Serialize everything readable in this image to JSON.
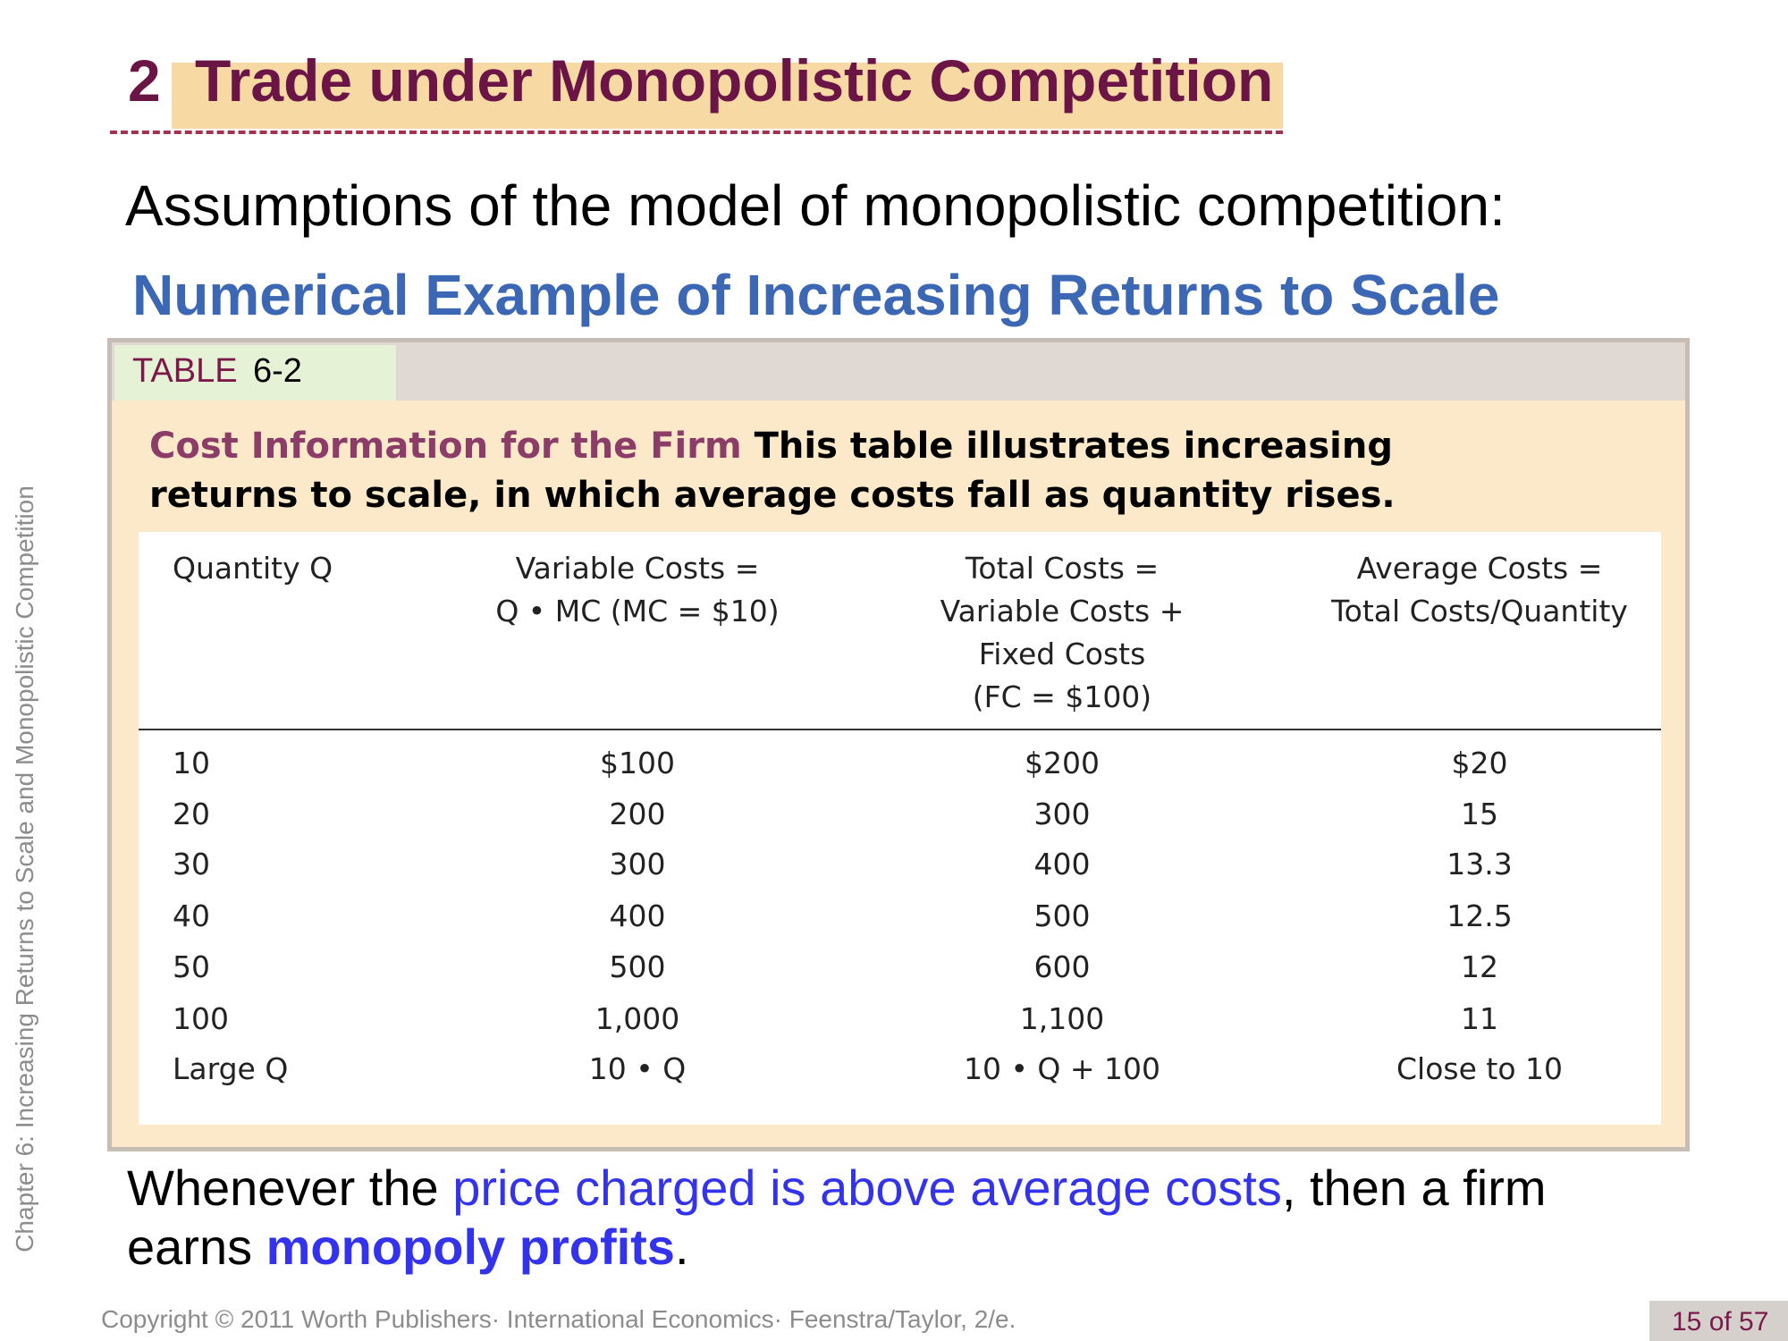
{
  "title": {
    "number": "2",
    "text": "Trade under Monopolistic Competition"
  },
  "assumptions": "Assumptions of the model of monopolistic competition:",
  "subheading": "Numerical Example of Increasing Returns to Scale",
  "table": {
    "label_word": "TABLE",
    "label_num": "6-2",
    "caption_title": "Cost Information for the Firm",
    "caption_text": " This table illustrates increasing returns to scale, in which average costs fall as quantity rises.",
    "headers": [
      "Quantity Q",
      "Variable Costs =\nQ • MC (MC = $10)",
      "Total Costs =\nVariable Costs +\nFixed Costs\n(FC = $100)",
      "Average Costs =\nTotal Costs/Quantity"
    ],
    "rows": [
      [
        "10",
        "$100",
        "$200",
        "$20"
      ],
      [
        "20",
        "200",
        "300",
        "15"
      ],
      [
        "30",
        "300",
        "400",
        "13.3"
      ],
      [
        "40",
        "400",
        "500",
        "12.5"
      ],
      [
        "50",
        "500",
        "600",
        "12"
      ],
      [
        "100",
        "1,000",
        "1,100",
        "11"
      ],
      [
        "Large Q",
        "10 • Q",
        "10 • Q + 100",
        "Close to 10"
      ]
    ]
  },
  "bottom": {
    "p1": "Whenever the ",
    "p1_hl": "price charged is above average costs",
    "p1_end": ", then a firm",
    "p2": "earns ",
    "p2_hl": "monopoly profits",
    "p2_end": "."
  },
  "footer": "Copyright © 2011 Worth Publishers· International Economics· Feenstra/Taylor, 2/e.",
  "page": "15 of 57",
  "side_text": "Chapter 6: Increasing Returns to Scale and Monopolistic Competition",
  "colors": {
    "title": "#6b1446",
    "title_bg": "#f7d9a4",
    "subheading": "#3b67b5",
    "highlight": "#3333ee",
    "table_bg": "#fbe9c9"
  }
}
